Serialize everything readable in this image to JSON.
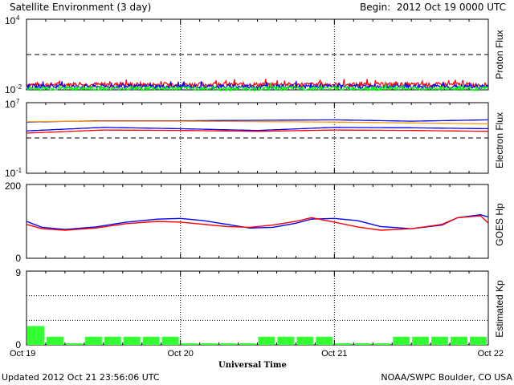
{
  "header": {
    "title": "Satellite Environment (3 day)",
    "begin": "Begin:  2012 Oct 19 0000 UTC"
  },
  "footer": {
    "updated": "Updated 2012 Oct 21 23:56:06 UTC",
    "source": "NOAA/SWPC Boulder, CO USA"
  },
  "x_axis": {
    "label": "Universal Time",
    "ticks": [
      "Oct 19",
      "Oct 20",
      "Oct 21",
      "Oct 22"
    ],
    "range_days": [
      0,
      3
    ]
  },
  "colors": {
    "red": "#ff0000",
    "blue": "#0000ff",
    "green": "#00ff00",
    "orange": "#ff9900",
    "kp_bar": "#33ff33",
    "grid": "#000000"
  },
  "chart_data": [
    {
      "type": "line",
      "panel": "proton",
      "ylabel": "Proton Flux",
      "scale": "log",
      "ylim_exp": [
        -2,
        4
      ],
      "ytick_labels": [
        {
          "base": "10",
          "exp": "4"
        },
        {
          "base": "10",
          "exp": "-2"
        }
      ],
      "threshold_exp": 1,
      "series": [
        {
          "color": "red",
          "x": [
            0,
            0.5,
            1,
            1.5,
            2,
            2.5,
            3
          ],
          "y_exp": [
            -1.55,
            -1.55,
            -1.55,
            -1.55,
            -1.55,
            -1.55,
            -1.55
          ]
        },
        {
          "color": "blue",
          "x": [
            0,
            0.5,
            1,
            1.5,
            2,
            2.5,
            3
          ],
          "y_exp": [
            -1.72,
            -1.72,
            -1.72,
            -1.72,
            -1.72,
            -1.72,
            -1.72
          ]
        },
        {
          "color": "green",
          "x": [
            0,
            0.5,
            1,
            1.5,
            2,
            2.5,
            3
          ],
          "y_exp": [
            -1.88,
            -1.88,
            -1.88,
            -1.88,
            -1.88,
            -1.88,
            -1.88
          ]
        }
      ]
    },
    {
      "type": "line",
      "panel": "electron",
      "ylabel": "Electron Flux",
      "scale": "log",
      "ylim_exp": [
        -1,
        7
      ],
      "ytick_labels": [
        {
          "base": "10",
          "exp": "7"
        },
        {
          "base": "10",
          "exp": "-1"
        }
      ],
      "threshold_exp": 3,
      "series": [
        {
          "color": "blue",
          "x": [
            0,
            0.5,
            1,
            1.5,
            2,
            2.5,
            3
          ],
          "y_exp": [
            4.8,
            4.95,
            4.95,
            5.0,
            5.05,
            4.9,
            5.05
          ]
        },
        {
          "color": "orange",
          "x": [
            0,
            0.5,
            1,
            1.5,
            2,
            2.5,
            3
          ],
          "y_exp": [
            4.85,
            4.9,
            4.9,
            4.85,
            4.8,
            4.7,
            4.6
          ]
        },
        {
          "color": "blue",
          "x": [
            0,
            0.5,
            1,
            1.5,
            2,
            2.5,
            3
          ],
          "y_exp": [
            3.8,
            4.2,
            4.05,
            3.85,
            4.2,
            4.15,
            4.05
          ]
        },
        {
          "color": "red",
          "x": [
            0,
            0.5,
            1,
            1.5,
            2,
            2.5,
            3
          ],
          "y_exp": [
            3.55,
            3.9,
            3.85,
            3.75,
            3.9,
            3.85,
            3.75
          ]
        }
      ]
    },
    {
      "type": "line",
      "panel": "hp",
      "ylabel": "GOES Hp",
      "scale": "linear",
      "ylim": [
        0,
        200
      ],
      "ytick_labels": [
        "200",
        "0"
      ],
      "series": [
        {
          "color": "blue",
          "x": [
            0,
            0.1,
            0.25,
            0.45,
            0.65,
            0.85,
            1.0,
            1.15,
            1.3,
            1.45,
            1.6,
            1.75,
            1.85,
            2.0,
            2.15,
            2.3,
            2.5,
            2.7,
            2.8,
            2.95,
            3.0
          ],
          "y": [
            100,
            84,
            78,
            85,
            98,
            106,
            108,
            102,
            92,
            82,
            84,
            95,
            106,
            108,
            102,
            86,
            80,
            90,
            110,
            118,
            112
          ]
        },
        {
          "color": "red",
          "x": [
            0,
            0.1,
            0.25,
            0.45,
            0.65,
            0.85,
            1.0,
            1.15,
            1.3,
            1.45,
            1.6,
            1.75,
            1.85,
            2.0,
            2.15,
            2.3,
            2.5,
            2.7,
            2.8,
            2.95,
            3.0
          ],
          "y": [
            92,
            80,
            76,
            82,
            94,
            100,
            98,
            92,
            86,
            84,
            90,
            100,
            110,
            98,
            85,
            76,
            80,
            92,
            110,
            115,
            95
          ]
        }
      ]
    },
    {
      "type": "bar",
      "panel": "kp",
      "ylabel": "Estimated Kp",
      "ylim": [
        0,
        9
      ],
      "ytick_labels": [
        "9",
        "0"
      ],
      "gridlines": [
        3,
        6,
        9
      ],
      "bar_width_hours": 3,
      "values": [
        2.3,
        1.0,
        0.2,
        1.0,
        1.0,
        1.0,
        1.0,
        1.0,
        0.2,
        0.2,
        0.2,
        0.2,
        1.0,
        1.0,
        1.0,
        1.0,
        0.2,
        0.2,
        0.2,
        1.0,
        1.0,
        1.0,
        1.0,
        1.0
      ]
    }
  ]
}
